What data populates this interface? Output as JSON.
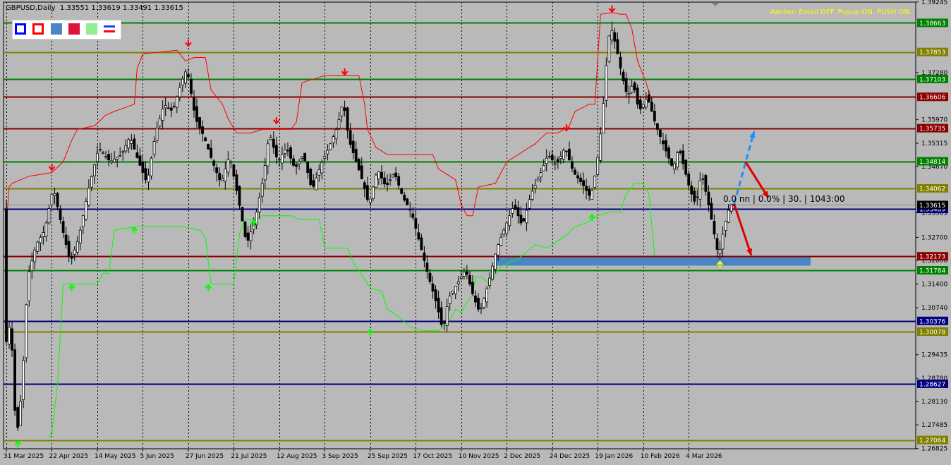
{
  "window": {
    "symbol": "GBPUSD,Daily",
    "ohlc": "1.33551 1.33619 1.33491 1.33615"
  },
  "alerter": "Alerter:  Email OFF.  Popup ON.  PUSH ON.",
  "toolbar": {
    "buttons": [
      {
        "name": "blue-outline-box-button",
        "border": "#0000ff",
        "fill": "#ffffff"
      },
      {
        "name": "red-outline-box-button",
        "border": "#ff0000",
        "fill": "#ffffff"
      },
      {
        "name": "steelblue-box-button",
        "border": "#4a86c4",
        "fill": "#4a86c4"
      },
      {
        "name": "crimson-box-button",
        "border": "#dc143c",
        "fill": "#dc143c"
      },
      {
        "name": "lightgreen-box-button",
        "border": "#90ee90",
        "fill": "#90ee90"
      },
      {
        "name": "lines-toggle-button",
        "border": "#ffffff",
        "fill": "#ffffff"
      }
    ]
  },
  "readout": "0.0 nn | 0.0% | 30. | 1043:00",
  "colors": {
    "background": "#b9b9b9",
    "candle": "#000000",
    "upper_band": "#ff0000",
    "lower_band": "#00ff00",
    "arrow_down": "#ff0000",
    "arrow_up": "#00ff00",
    "projection_blue": "#1e90ff",
    "projection_red": "#dd0000",
    "zone": "#4a86c4",
    "level_green": "#008000",
    "level_olive": "#808000",
    "level_maroon": "#8b0000",
    "level_navy": "#000080"
  },
  "chart_data": {
    "type": "candlestick",
    "ylim": [
      1.2682,
      1.3924
    ],
    "y_ticks": [
      "1.39245",
      "1.38663",
      "1.37853",
      "1.37280",
      "1.37103",
      "1.36606",
      "1.35970",
      "1.35735",
      "1.35315",
      "1.34814",
      "1.34670",
      "1.34062",
      "1.33615",
      "1.33489",
      "1.33385",
      "1.32700",
      "1.32173",
      "1.32060",
      "1.31784",
      "1.31400",
      "1.30740",
      "1.30376",
      "1.30078",
      "1.29435",
      "1.28780",
      "1.28627",
      "1.28130",
      "1.27485",
      "1.27064",
      "1.26825"
    ],
    "x_ticks": [
      {
        "label": "31 Mar 2025",
        "bar": 0
      },
      {
        "label": "22 Apr 2025",
        "bar": 16
      },
      {
        "label": "14 May 2025",
        "bar": 32
      },
      {
        "label": "5 Jun 2025",
        "bar": 48
      },
      {
        "label": "27 Jun 2025",
        "bar": 64
      },
      {
        "label": "21 Jul 2025",
        "bar": 80
      },
      {
        "label": "12 Aug 2025",
        "bar": 96
      },
      {
        "label": "3 Sep 2025",
        "bar": 112
      },
      {
        "label": "25 Sep 2025",
        "bar": 128
      },
      {
        "label": "17 Oct 2025",
        "bar": 144
      },
      {
        "label": "10 Nov 2025",
        "bar": 160
      },
      {
        "label": "2 Dec 2025",
        "bar": 176
      },
      {
        "label": "24 Dec 2025",
        "bar": 192
      },
      {
        "label": "19 Jan 2026",
        "bar": 208
      },
      {
        "label": "10 Feb 2026",
        "bar": 224
      },
      {
        "label": "4 Mar 2026",
        "bar": 240
      }
    ],
    "bars_visible": 247,
    "levels": [
      {
        "value": 1.38663,
        "label": "1.38663",
        "color": "#008000"
      },
      {
        "value": 1.37853,
        "label": "1.37853",
        "color": "#808000"
      },
      {
        "value": 1.37103,
        "label": "1.37103",
        "color": "#008000"
      },
      {
        "value": 1.36606,
        "label": "1.36606",
        "color": "#8b0000"
      },
      {
        "value": 1.35735,
        "label": "1.35735",
        "color": "#8b0000"
      },
      {
        "value": 1.34814,
        "label": "1.34814",
        "color": "#008000"
      },
      {
        "value": 1.34062,
        "label": "1.34062",
        "color": "#808000"
      },
      {
        "value": 1.33489,
        "label": "1.33489",
        "color": "#000080"
      },
      {
        "value": 1.32173,
        "label": "1.32173",
        "color": "#8b0000"
      },
      {
        "value": 1.31784,
        "label": "1.31784",
        "color": "#008000"
      },
      {
        "value": 1.30376,
        "label": "1.30376",
        "color": "#000080"
      },
      {
        "value": 1.30078,
        "label": "1.30078",
        "color": "#808000"
      },
      {
        "value": 1.28627,
        "label": "1.28627",
        "color": "#000080"
      },
      {
        "value": 1.27064,
        "label": "1.27064",
        "color": "#808000"
      }
    ],
    "current_price": {
      "value": 1.33615,
      "label": "1.33615"
    },
    "anchors": [
      [
        0,
        1.296
      ],
      [
        2,
        1.304
      ],
      [
        4,
        1.2705
      ],
      [
        6,
        1.285
      ],
      [
        8,
        1.316
      ],
      [
        11,
        1.325
      ],
      [
        14,
        1.329
      ],
      [
        17,
        1.341
      ],
      [
        20,
        1.33
      ],
      [
        23,
        1.32
      ],
      [
        26,
        1.327
      ],
      [
        29,
        1.339
      ],
      [
        33,
        1.352
      ],
      [
        37,
        1.348
      ],
      [
        41,
        1.35
      ],
      [
        44,
        1.355
      ],
      [
        47,
        1.348
      ],
      [
        50,
        1.342
      ],
      [
        53,
        1.356
      ],
      [
        56,
        1.364
      ],
      [
        59,
        1.362
      ],
      [
        62,
        1.37
      ],
      [
        64,
        1.374
      ],
      [
        67,
        1.36
      ],
      [
        70,
        1.355
      ],
      [
        73,
        1.348
      ],
      [
        76,
        1.342
      ],
      [
        79,
        1.35
      ],
      [
        82,
        1.338
      ],
      [
        85,
        1.325
      ],
      [
        88,
        1.332
      ],
      [
        91,
        1.344
      ],
      [
        93,
        1.356
      ],
      [
        96,
        1.348
      ],
      [
        99,
        1.352
      ],
      [
        102,
        1.346
      ],
      [
        105,
        1.35
      ],
      [
        108,
        1.34
      ],
      [
        111,
        1.347
      ],
      [
        114,
        1.352
      ],
      [
        117,
        1.358
      ],
      [
        119,
        1.365
      ],
      [
        121,
        1.354
      ],
      [
        124,
        1.347
      ],
      [
        126,
        1.342
      ],
      [
        128,
        1.336
      ],
      [
        131,
        1.346
      ],
      [
        134,
        1.341
      ],
      [
        137,
        1.345
      ],
      [
        140,
        1.338
      ],
      [
        143,
        1.334
      ],
      [
        146,
        1.325
      ],
      [
        149,
        1.316
      ],
      [
        152,
        1.308
      ],
      [
        154,
        1.301
      ],
      [
        156,
        1.31
      ],
      [
        159,
        1.314
      ],
      [
        162,
        1.318
      ],
      [
        165,
        1.31
      ],
      [
        167,
        1.306
      ],
      [
        170,
        1.314
      ],
      [
        173,
        1.324
      ],
      [
        176,
        1.33
      ],
      [
        179,
        1.336
      ],
      [
        182,
        1.33
      ],
      [
        185,
        1.339
      ],
      [
        188,
        1.344
      ],
      [
        191,
        1.35
      ],
      [
        194,
        1.347
      ],
      [
        197,
        1.352
      ],
      [
        200,
        1.345
      ],
      [
        203,
        1.342
      ],
      [
        206,
        1.338
      ],
      [
        208,
        1.346
      ],
      [
        210,
        1.359
      ],
      [
        212,
        1.38
      ],
      [
        213,
        1.386
      ],
      [
        215,
        1.38
      ],
      [
        217,
        1.372
      ],
      [
        219,
        1.366
      ],
      [
        221,
        1.37
      ],
      [
        223,
        1.362
      ],
      [
        226,
        1.366
      ],
      [
        229,
        1.358
      ],
      [
        232,
        1.352
      ],
      [
        235,
        1.346
      ],
      [
        237,
        1.352
      ],
      [
        239,
        1.346
      ],
      [
        241,
        1.34
      ],
      [
        243,
        1.336
      ],
      [
        245,
        1.345
      ],
      [
        247,
        1.338
      ],
      [
        249,
        1.33
      ],
      [
        251,
        1.3215
      ],
      [
        253,
        1.33
      ],
      [
        255,
        1.336
      ],
      [
        256,
        1.3362
      ]
    ],
    "upper_band": [
      [
        0,
        1.331
      ],
      [
        1,
        1.341
      ],
      [
        2,
        1.342
      ],
      [
        8,
        1.344
      ],
      [
        16,
        1.345
      ],
      [
        20,
        1.348
      ],
      [
        23,
        1.354
      ],
      [
        25,
        1.357
      ],
      [
        31,
        1.358
      ],
      [
        35,
        1.361
      ],
      [
        38,
        1.362
      ],
      [
        45,
        1.364
      ],
      [
        46,
        1.374
      ],
      [
        48,
        1.378
      ],
      [
        60,
        1.379
      ],
      [
        63,
        1.376
      ],
      [
        66,
        1.377
      ],
      [
        70,
        1.377
      ],
      [
        72,
        1.368
      ],
      [
        76,
        1.364
      ],
      [
        78,
        1.36
      ],
      [
        81,
        1.356
      ],
      [
        86,
        1.356
      ],
      [
        90,
        1.357
      ],
      [
        96,
        1.357
      ],
      [
        100,
        1.357
      ],
      [
        102,
        1.359
      ],
      [
        104,
        1.37
      ],
      [
        112,
        1.372
      ],
      [
        124,
        1.372
      ],
      [
        126,
        1.364
      ],
      [
        127,
        1.357
      ],
      [
        130,
        1.352
      ],
      [
        134,
        1.35
      ],
      [
        150,
        1.35
      ],
      [
        152,
        1.346
      ],
      [
        158,
        1.343
      ],
      [
        160,
        1.336
      ],
      [
        162,
        1.333
      ],
      [
        164,
        1.333
      ],
      [
        166,
        1.341
      ],
      [
        172,
        1.342
      ],
      [
        176,
        1.348
      ],
      [
        180,
        1.35
      ],
      [
        186,
        1.353
      ],
      [
        190,
        1.356
      ],
      [
        194,
        1.356
      ],
      [
        198,
        1.358
      ],
      [
        200,
        1.362
      ],
      [
        205,
        1.364
      ],
      [
        207,
        1.364
      ],
      [
        209,
        1.389
      ],
      [
        213,
        1.3895
      ],
      [
        216,
        1.389
      ],
      [
        218,
        1.389
      ],
      [
        220,
        1.385
      ],
      [
        222,
        1.376
      ],
      [
        225,
        1.37
      ],
      [
        227,
        1.365
      ]
    ],
    "lower_band": [
      [
        15,
        1.271
      ],
      [
        16,
        1.273
      ],
      [
        18,
        1.286
      ],
      [
        20,
        1.314
      ],
      [
        23,
        1.314
      ],
      [
        32,
        1.314
      ],
      [
        34,
        1.317
      ],
      [
        36,
        1.317
      ],
      [
        38,
        1.329
      ],
      [
        46,
        1.33
      ],
      [
        58,
        1.33
      ],
      [
        62,
        1.33
      ],
      [
        68,
        1.329
      ],
      [
        70,
        1.327
      ],
      [
        72,
        1.314
      ],
      [
        78,
        1.314
      ],
      [
        80,
        1.314
      ],
      [
        82,
        1.328
      ],
      [
        84,
        1.332
      ],
      [
        86,
        1.332
      ],
      [
        88,
        1.332
      ],
      [
        90,
        1.333
      ],
      [
        96,
        1.333
      ],
      [
        100,
        1.333
      ],
      [
        103,
        1.332
      ],
      [
        110,
        1.332
      ],
      [
        112,
        1.324
      ],
      [
        120,
        1.324
      ],
      [
        122,
        1.32
      ],
      [
        128,
        1.313
      ],
      [
        132,
        1.312
      ],
      [
        134,
        1.307
      ],
      [
        138,
        1.305
      ],
      [
        142,
        1.302
      ],
      [
        147,
        1.301
      ],
      [
        152,
        1.301
      ],
      [
        156,
        1.304
      ],
      [
        158,
        1.307
      ],
      [
        160,
        1.306
      ],
      [
        162,
        1.309
      ],
      [
        164,
        1.311
      ],
      [
        165,
        1.316
      ],
      [
        167,
        1.316
      ],
      [
        170,
        1.314
      ],
      [
        174,
        1.319
      ],
      [
        177,
        1.32
      ],
      [
        180,
        1.321
      ],
      [
        186,
        1.325
      ],
      [
        190,
        1.324
      ],
      [
        196,
        1.327
      ],
      [
        200,
        1.33
      ],
      [
        204,
        1.331
      ],
      [
        206,
        1.332
      ],
      [
        208,
        1.333
      ],
      [
        212,
        1.334
      ],
      [
        216,
        1.334
      ],
      [
        218,
        1.339
      ],
      [
        221,
        1.342
      ],
      [
        224,
        1.342
      ],
      [
        226,
        1.339
      ],
      [
        228,
        1.322
      ]
    ],
    "arrows_down": [
      {
        "bar": 16,
        "price": 1.3455
      },
      {
        "bar": 64,
        "price": 1.38
      },
      {
        "bar": 95,
        "price": 1.3585
      },
      {
        "bar": 119,
        "price": 1.372
      },
      {
        "bar": 197,
        "price": 1.3565
      },
      {
        "bar": 213,
        "price": 1.3895
      }
    ],
    "arrows_up": [
      {
        "bar": 4,
        "price": 1.2705
      },
      {
        "bar": 23,
        "price": 1.314
      },
      {
        "bar": 45,
        "price": 1.33
      },
      {
        "bar": 71,
        "price": 1.314
      },
      {
        "bar": 87,
        "price": 1.332
      },
      {
        "bar": 128,
        "price": 1.3015
      },
      {
        "bar": 206,
        "price": 1.3335
      }
    ],
    "arrow_yellow": {
      "bar": 251,
      "price": 1.3205
    },
    "zone": {
      "start_bar": 172,
      "end_bar": 290,
      "top": 1.3215,
      "bottom": 1.3203
    },
    "projections": [
      {
        "style": "dashed",
        "color": "#1e90ff",
        "from": [
          256,
          1.3363
        ],
        "to": [
          263,
          1.3565
        ]
      },
      {
        "style": "solid",
        "color": "#dd0000",
        "from": [
          260,
          1.348
        ],
        "to": [
          268,
          1.338
        ]
      },
      {
        "style": "solid",
        "color": "#dd0000",
        "from": [
          256,
          1.3362
        ],
        "to": [
          262,
          1.322
        ]
      }
    ]
  }
}
